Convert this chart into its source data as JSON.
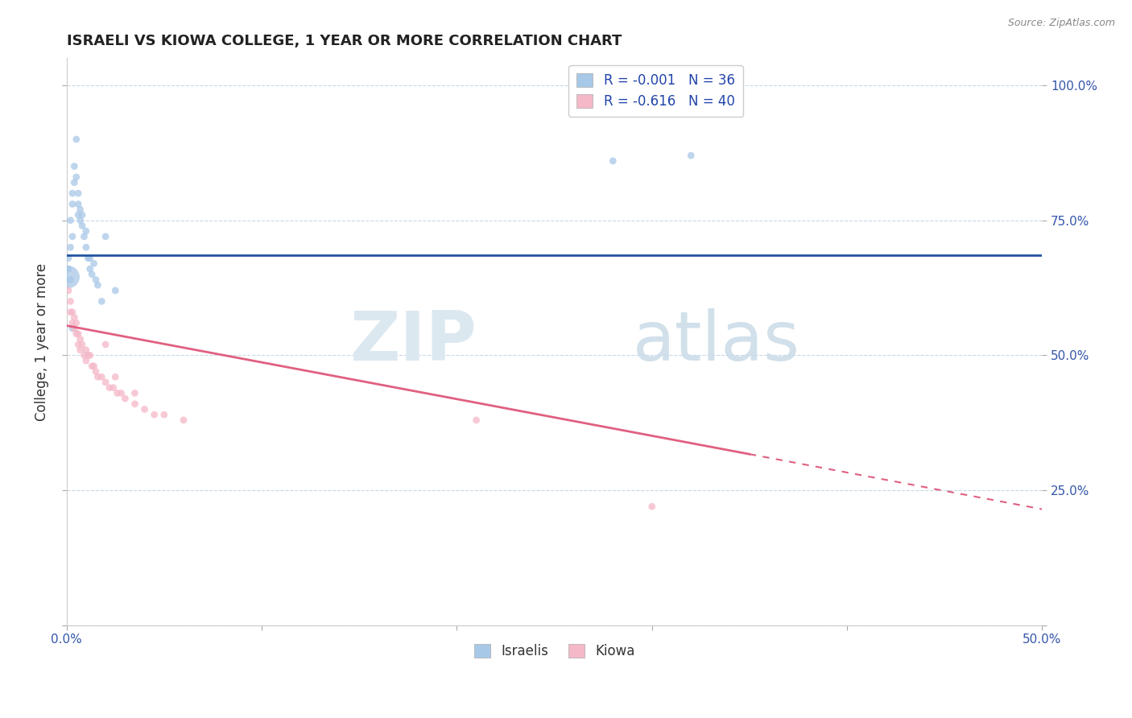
{
  "title": "ISRAELI VS KIOWA COLLEGE, 1 YEAR OR MORE CORRELATION CHART",
  "source_text": "Source: ZipAtlas.com",
  "ylabel": "College, 1 year or more",
  "xlim": [
    0.0,
    0.5
  ],
  "ylim": [
    0.0,
    1.05
  ],
  "legend_r1": "R = -0.001",
  "legend_n1": "N = 36",
  "legend_r2": "R = -0.616",
  "legend_n2": "N = 40",
  "blue_color": "#a8c8e8",
  "pink_color": "#f5b8c8",
  "blue_line_color": "#2255a0",
  "pink_line_color": "#e06080",
  "grid_color": "#c8d8e8",
  "israelis_x": [
    0.001,
    0.002,
    0.002,
    0.003,
    0.003,
    0.003,
    0.004,
    0.004,
    0.005,
    0.005,
    0.006,
    0.006,
    0.006,
    0.007,
    0.007,
    0.008,
    0.008,
    0.009,
    0.01,
    0.01,
    0.011,
    0.012,
    0.012,
    0.013,
    0.014,
    0.015,
    0.016,
    0.018,
    0.02,
    0.025,
    0.001,
    0.002,
    0.003,
    0.28,
    0.32,
    0.001
  ],
  "israelis_y": [
    0.68,
    0.7,
    0.75,
    0.72,
    0.78,
    0.8,
    0.82,
    0.85,
    0.83,
    0.9,
    0.76,
    0.78,
    0.8,
    0.75,
    0.77,
    0.74,
    0.76,
    0.72,
    0.7,
    0.73,
    0.68,
    0.66,
    0.68,
    0.65,
    0.67,
    0.64,
    0.63,
    0.6,
    0.72,
    0.62,
    0.66,
    0.64,
    0.55,
    0.86,
    0.87,
    0.645
  ],
  "israelis_sizes": [
    40,
    40,
    40,
    40,
    40,
    40,
    40,
    40,
    40,
    40,
    40,
    40,
    40,
    40,
    40,
    40,
    40,
    40,
    40,
    40,
    40,
    40,
    40,
    40,
    40,
    40,
    40,
    40,
    40,
    40,
    40,
    40,
    40,
    40,
    40,
    400
  ],
  "kiowa_x": [
    0.001,
    0.002,
    0.002,
    0.003,
    0.003,
    0.004,
    0.004,
    0.005,
    0.005,
    0.006,
    0.006,
    0.007,
    0.007,
    0.008,
    0.009,
    0.01,
    0.01,
    0.011,
    0.012,
    0.013,
    0.014,
    0.015,
    0.016,
    0.018,
    0.02,
    0.022,
    0.024,
    0.026,
    0.028,
    0.03,
    0.035,
    0.04,
    0.045,
    0.05,
    0.06,
    0.02,
    0.025,
    0.035,
    0.3,
    0.21
  ],
  "kiowa_y": [
    0.62,
    0.6,
    0.58,
    0.58,
    0.56,
    0.57,
    0.55,
    0.56,
    0.54,
    0.54,
    0.52,
    0.53,
    0.51,
    0.52,
    0.5,
    0.51,
    0.49,
    0.5,
    0.5,
    0.48,
    0.48,
    0.47,
    0.46,
    0.46,
    0.45,
    0.44,
    0.44,
    0.43,
    0.43,
    0.42,
    0.41,
    0.4,
    0.39,
    0.39,
    0.38,
    0.52,
    0.46,
    0.43,
    0.22,
    0.38
  ],
  "kiowa_sizes": [
    40,
    40,
    40,
    40,
    40,
    40,
    40,
    40,
    40,
    40,
    40,
    40,
    40,
    40,
    40,
    40,
    40,
    40,
    40,
    40,
    40,
    40,
    40,
    40,
    40,
    40,
    40,
    40,
    40,
    40,
    40,
    40,
    40,
    40,
    40,
    40,
    40,
    40,
    40,
    40
  ],
  "blue_trendline_y0": 0.685,
  "blue_trendline_y1": 0.685,
  "pink_trendline_y0": 0.555,
  "pink_trendline_y1": 0.215
}
